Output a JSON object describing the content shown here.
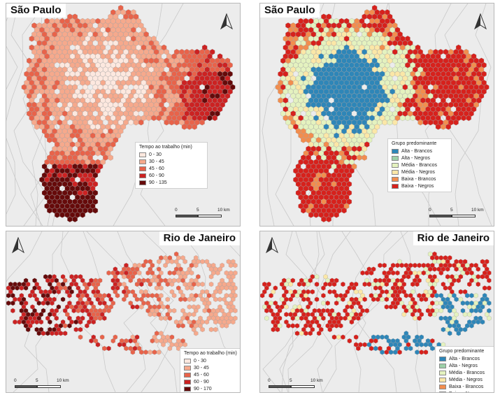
{
  "colors": {
    "seq": [
      "#fde8df",
      "#f6a98c",
      "#e8634a",
      "#cc2222",
      "#660a0a"
    ],
    "groups": [
      "#2e86b8",
      "#9dd0a8",
      "#e4f2bf",
      "#fbe7a7",
      "#f28d4e",
      "#d7211c"
    ],
    "background": "#ececec"
  },
  "sp_time": {
    "title": "São Paulo",
    "legend_title": "Tempo ao trabalho (min)",
    "classes": [
      "0 - 30",
      "30 - 45",
      "45 - 60",
      "60 - 90",
      "90 - 135"
    ],
    "scale": {
      "zero": "0",
      "mid": "5",
      "end": "10 km"
    },
    "north_icon": "north-arrow-icon"
  },
  "sp_group": {
    "title": "São Paulo",
    "legend_title": "Grupo predominante",
    "classes": [
      "Alta - Brancos",
      "Alta - Negros",
      "Média - Brancos",
      "Média - Negros",
      "Baixa - Brancos",
      "Baixa - Negros"
    ],
    "scale": {
      "zero": "0",
      "mid": "5",
      "end": "10 km"
    },
    "north_icon": "north-arrow-icon"
  },
  "rj_time": {
    "title": "Rio de Janeiro",
    "legend_title": "Tempo ao trabalho (min)",
    "classes": [
      "0 - 30",
      "30 - 45",
      "45 - 60",
      "60 - 90",
      "90 - 170"
    ],
    "scale": {
      "zero": "0",
      "mid": "5",
      "end": "10 km"
    },
    "north_icon": "north-arrow-icon"
  },
  "rj_group": {
    "title": "Rio de Janeiro",
    "legend_title": "Grupo predominante",
    "classes": [
      "Alta - Brancos",
      "Alta - Negros",
      "Média - Brancos",
      "Média - Negros",
      "Baixa - Brancos",
      "Baixa - Negros"
    ],
    "scale": {
      "zero": "0",
      "mid": "5",
      "end": "10 km"
    },
    "north_icon": "north-arrow-icon"
  }
}
